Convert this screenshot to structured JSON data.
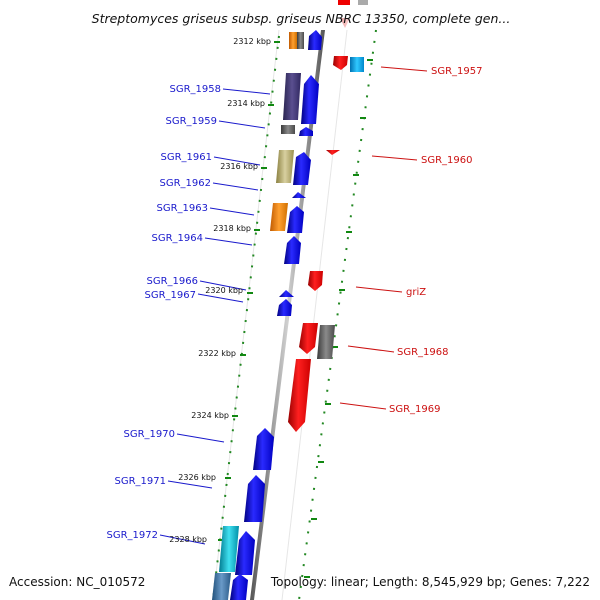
{
  "title": "Streptomyces griseus subsp. griseus NBRC 13350, complete gen...",
  "footer": {
    "accession": "Accession: NC_010572",
    "stats": "Topology: linear; Length: 8,545,929 bp; Genes: 7,222"
  },
  "kbp_labels": [
    "2312 kbp",
    "2314 kbp",
    "2316 kbp",
    "2318 kbp",
    "2320 kbp",
    "2322 kbp",
    "2324 kbp",
    "2326 kbp",
    "2328 kbp"
  ],
  "genes_left": [
    "SGR_1958",
    "SGR_1959",
    "SGR_1961",
    "SGR_1962",
    "SGR_1963",
    "SGR_1964",
    "SGR_1966",
    "SGR_1967",
    "SGR_1970",
    "SGR_1971",
    "SGR_1972"
  ],
  "genes_right": [
    "SGR_1957",
    "SGR_1960",
    "griZ",
    "SGR_1968",
    "SGR_1969"
  ],
  "colors": {
    "forward_strand": "#0000ee",
    "reverse_strand": "#ee0000",
    "label_left": "#1a1acc",
    "label_right": "#cc1111",
    "tick": "#228822"
  }
}
